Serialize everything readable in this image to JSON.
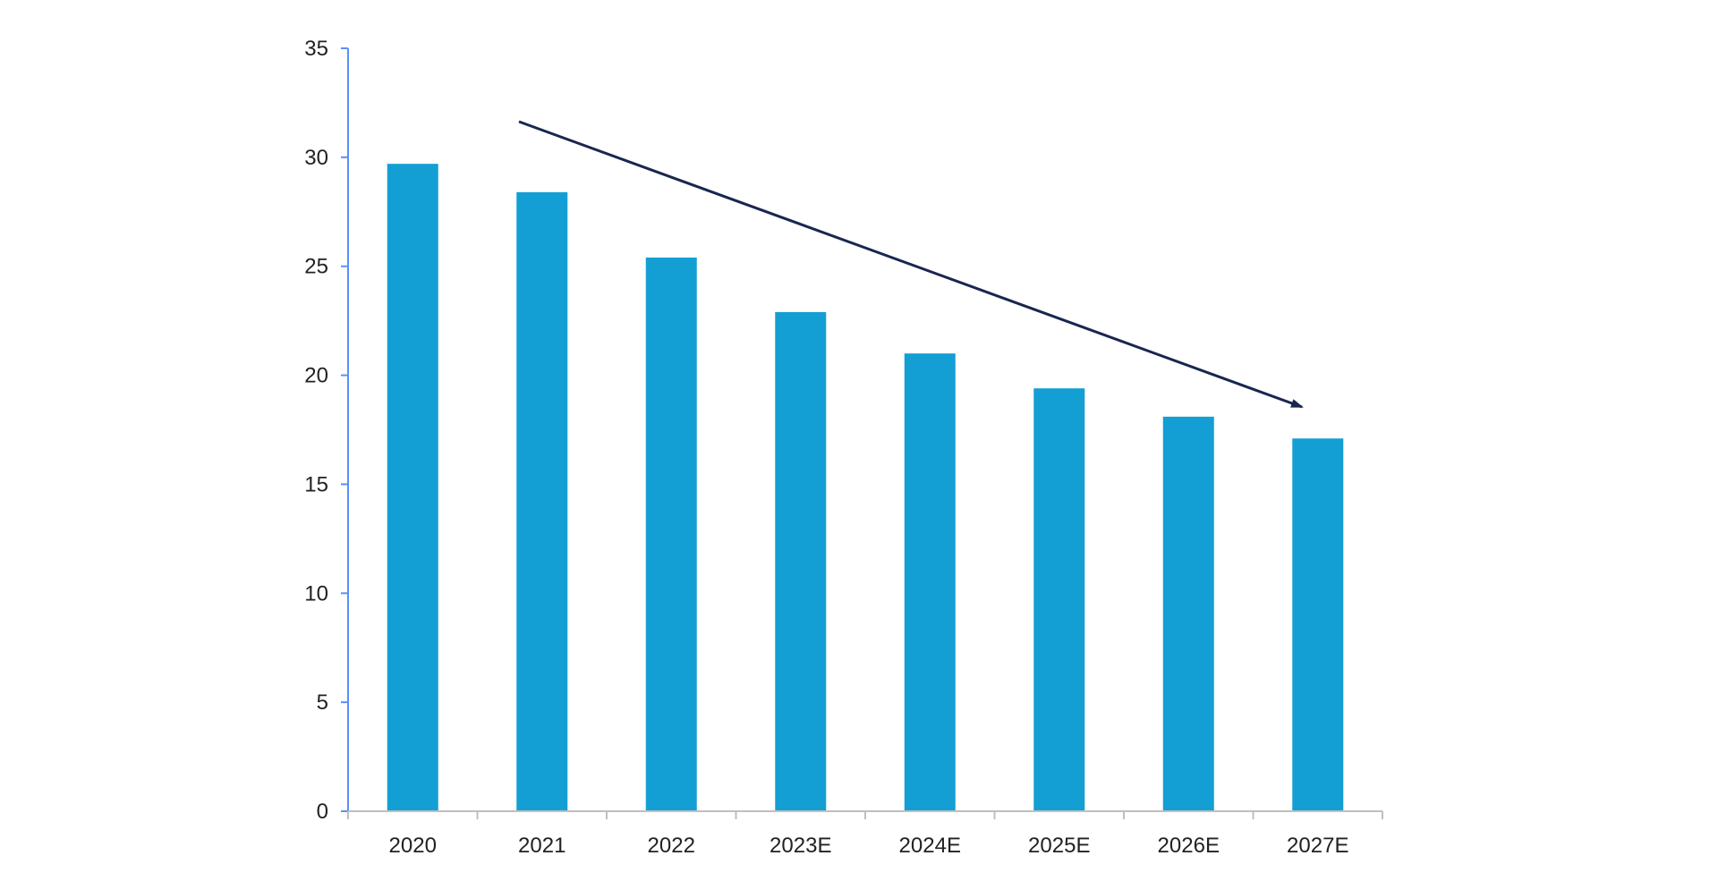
{
  "chart_data": {
    "type": "bar",
    "title": "",
    "xlabel": "",
    "ylabel": "",
    "categories": [
      "2020",
      "2021",
      "2022",
      "2023E",
      "2024E",
      "2025E",
      "2026E",
      "2027E"
    ],
    "series": [
      {
        "values": [
          29.7,
          28.4,
          25.4,
          22.9,
          21.0,
          19.4,
          18.1,
          17.1
        ]
      }
    ],
    "ylim": [
      0,
      35
    ],
    "yticks": [
      0,
      5,
      10,
      15,
      20,
      25,
      30,
      35
    ],
    "grid": false,
    "legend": "none",
    "annotations": [
      {
        "type": "trend-arrow",
        "direction": "downward",
        "from_category": "2021",
        "to_category": "2027E"
      }
    ],
    "colors": {
      "bar": "#139FD3",
      "y_axis": "#5B8FF9",
      "x_axis": "#BFBFBF",
      "arrow": "#1A2650",
      "text": "#222222"
    }
  }
}
